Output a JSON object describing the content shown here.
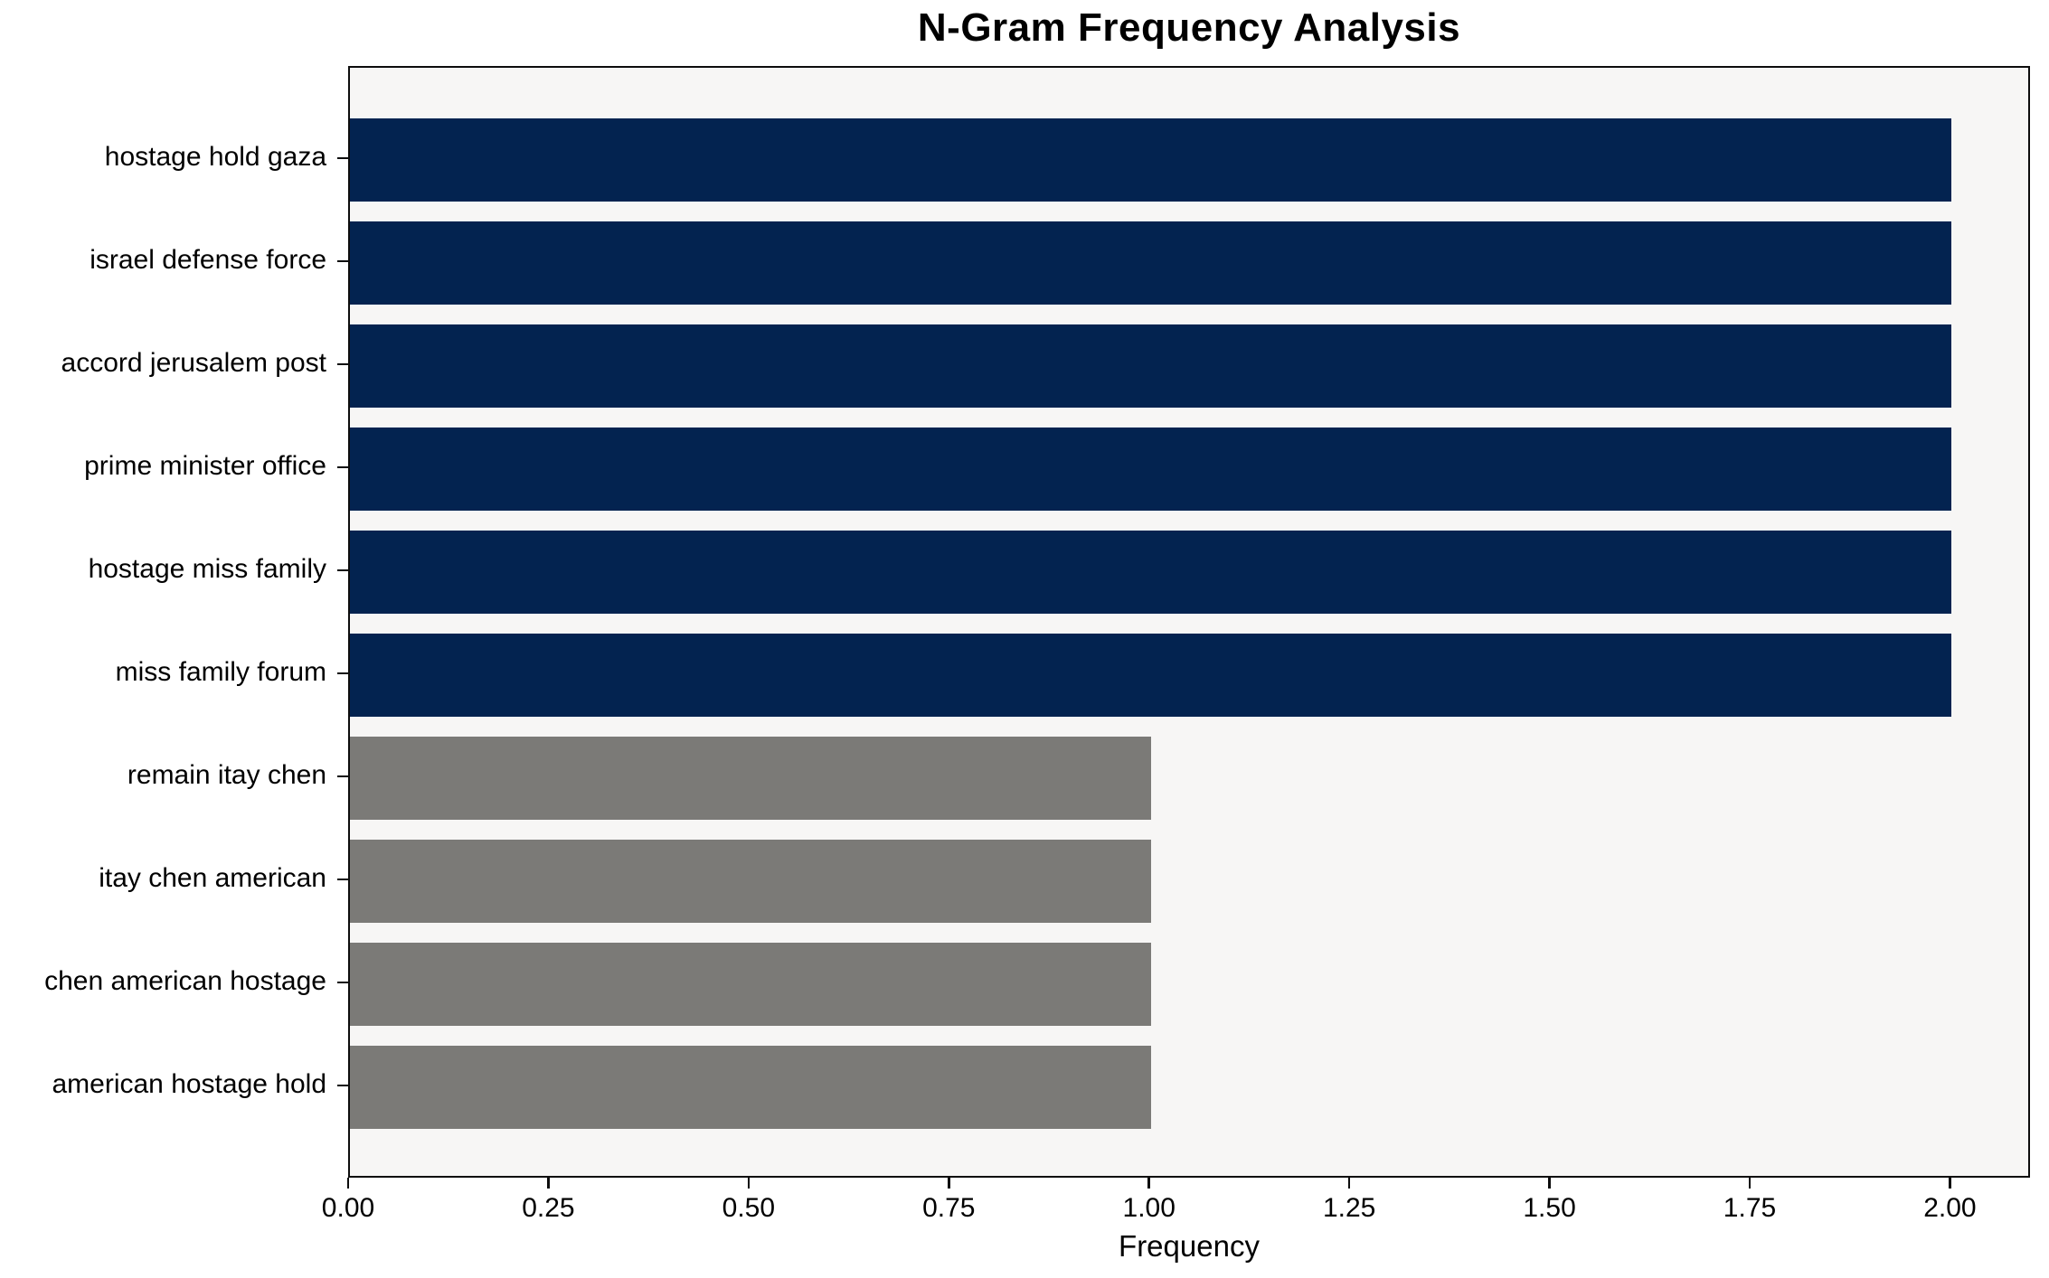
{
  "title": "N-Gram Frequency Analysis",
  "xlabel": "Frequency",
  "colors": {
    "primary_bar": "#032350",
    "secondary_bar": "#7b7a77",
    "plot_background": "#f7f6f5",
    "spine": "#0d0d0d",
    "text": "#000000",
    "figure_background": "#ffffff"
  },
  "chart_data": {
    "type": "bar",
    "orientation": "horizontal",
    "title": "N-Gram Frequency Analysis",
    "xlabel": "Frequency",
    "ylabel": "",
    "categories": [
      "hostage hold gaza",
      "israel defense force",
      "accord jerusalem post",
      "prime minister office",
      "hostage miss family",
      "miss family forum",
      "remain itay chen",
      "itay chen american",
      "chen american hostage",
      "american hostage hold"
    ],
    "values": [
      2,
      2,
      2,
      2,
      2,
      2,
      1,
      1,
      1,
      1
    ],
    "bar_colors": [
      "#032350",
      "#032350",
      "#032350",
      "#032350",
      "#032350",
      "#032350",
      "#7b7a77",
      "#7b7a77",
      "#7b7a77",
      "#7b7a77"
    ],
    "xlim": [
      0,
      2.1
    ],
    "xticks": [
      0,
      0.25,
      0.5,
      0.75,
      1.0,
      1.25,
      1.5,
      1.75,
      2.0
    ],
    "xtick_labels": [
      "0.00",
      "0.25",
      "0.50",
      "0.75",
      "1.00",
      "1.25",
      "1.50",
      "1.75",
      "2.00"
    ],
    "grid": false,
    "legend": null
  }
}
